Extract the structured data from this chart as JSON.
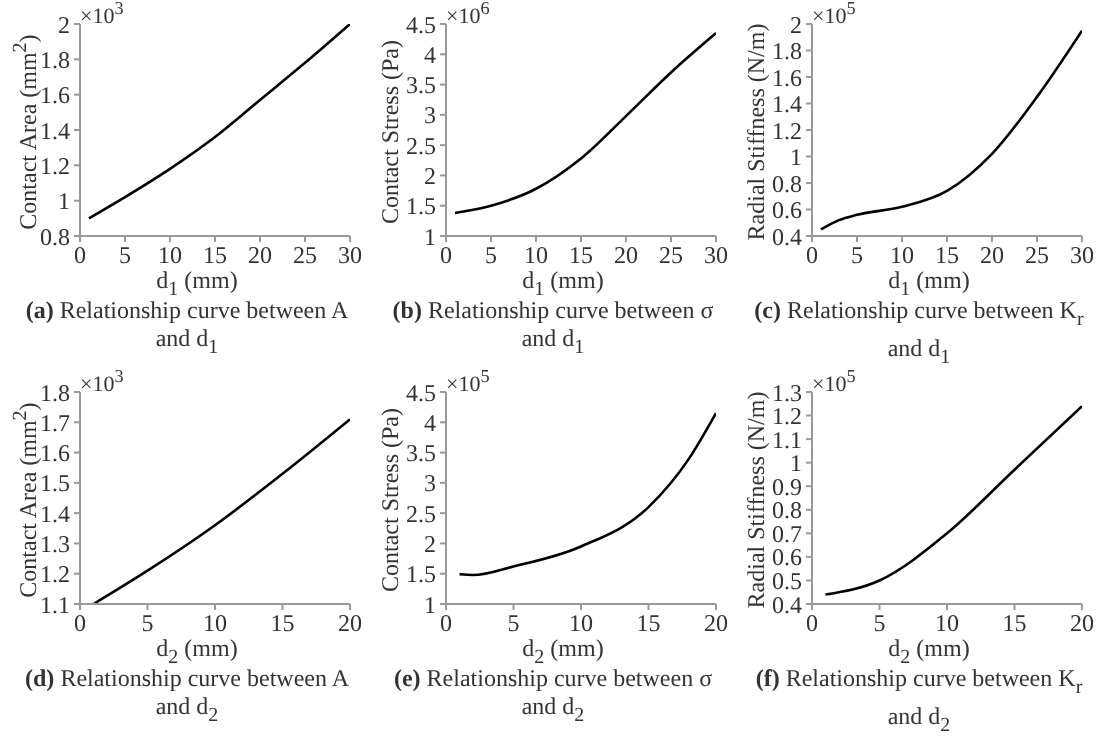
{
  "chart_data": [
    {
      "type": "line",
      "title": "(a) Relationship curve between A and d$_{1}$",
      "xlabel": "d$_{1}$ (mm)",
      "ylabel": "Contact Area (mm$^{2}$)",
      "annotations": [
        "×10$^{3}$"
      ],
      "x": [
        1,
        5,
        10,
        15,
        20,
        25,
        30
      ],
      "series": [
        {
          "color": "#000000",
          "values": [
            0.9,
            1.02,
            1.18,
            1.36,
            1.57,
            1.78,
            2.0
          ]
        }
      ],
      "xlim": [
        0,
        30
      ],
      "xticks": [
        0,
        5,
        10,
        15,
        20,
        25,
        30
      ],
      "ylim": [
        0.8,
        2
      ],
      "yticks": [
        0.8,
        1,
        1.2,
        1.4,
        1.6,
        1.8,
        2
      ],
      "grid": false,
      "legend": false,
      "marker": "none",
      "line_style": "solid"
    },
    {
      "type": "line",
      "title": "(b) Relationship curve between σ and d$_{1}$",
      "xlabel": "d$_{1}$ (mm)",
      "ylabel": "Contact Stress (Pa)",
      "annotations": [
        "×10$^{6}$"
      ],
      "x": [
        1,
        5,
        10,
        15,
        20,
        25,
        30
      ],
      "series": [
        {
          "color": "#000000",
          "values": [
            1.38,
            1.5,
            1.78,
            2.28,
            2.98,
            3.7,
            4.35
          ]
        }
      ],
      "xlim": [
        0,
        30
      ],
      "xticks": [
        0,
        5,
        10,
        15,
        20,
        25,
        30
      ],
      "ylim": [
        1,
        4.5
      ],
      "yticks": [
        1,
        1.5,
        2,
        2.5,
        3,
        3.5,
        4,
        4.5
      ],
      "grid": false,
      "legend": false,
      "marker": "none",
      "line_style": "solid"
    },
    {
      "type": "line",
      "title": "(c) Relationship curve between K$_{r}$ and d$_{1}$",
      "xlabel": "d$_{1}$ (mm)",
      "ylabel": "Radial Stiffness (N/m)",
      "annotations": [
        "×10$^{5}$"
      ],
      "x": [
        1,
        3,
        5,
        10,
        15,
        20,
        25,
        30
      ],
      "series": [
        {
          "color": "#000000",
          "values": [
            0.45,
            0.52,
            0.56,
            0.62,
            0.74,
            1.02,
            1.45,
            1.95
          ]
        }
      ],
      "xlim": [
        0,
        30
      ],
      "xticks": [
        0,
        5,
        10,
        15,
        20,
        25,
        30
      ],
      "ylim": [
        0.4,
        2
      ],
      "yticks": [
        0.4,
        0.6,
        0.8,
        1,
        1.2,
        1.4,
        1.6,
        1.8,
        2
      ],
      "grid": false,
      "legend": false,
      "marker": "none",
      "line_style": "solid"
    },
    {
      "type": "line",
      "title": "(d) Relationship curve between A and d$_{2}$",
      "xlabel": "d$_{2}$ (mm)",
      "ylabel": "Contact Area (mm$^{2}$)",
      "annotations": [
        "×10$^{3}$"
      ],
      "x": [
        1,
        5,
        10,
        15,
        20
      ],
      "series": [
        {
          "color": "#000000",
          "values": [
            1.1,
            1.21,
            1.36,
            1.53,
            1.71
          ]
        }
      ],
      "xlim": [
        0,
        20
      ],
      "xticks": [
        0,
        5,
        10,
        15,
        20
      ],
      "ylim": [
        1.1,
        1.8
      ],
      "yticks": [
        1.1,
        1.2,
        1.3,
        1.4,
        1.5,
        1.6,
        1.7,
        1.8
      ],
      "grid": false,
      "legend": false,
      "marker": "none",
      "line_style": "solid"
    },
    {
      "type": "line",
      "title": "(e) Relationship curve between σ and d$_{2}$",
      "xlabel": "d$_{2}$ (mm)",
      "ylabel": "Contact Stress (Pa)",
      "annotations": [
        "×10$^{5}$"
      ],
      "x": [
        1,
        2,
        5,
        10,
        15,
        18,
        20
      ],
      "series": [
        {
          "color": "#000000",
          "values": [
            1.49,
            1.48,
            1.62,
            1.95,
            2.6,
            3.4,
            4.15
          ]
        }
      ],
      "xlim": [
        0,
        20
      ],
      "xticks": [
        0,
        5,
        10,
        15,
        20
      ],
      "ylim": [
        1,
        4.5
      ],
      "yticks": [
        1,
        1.5,
        2,
        2.5,
        3,
        3.5,
        4,
        4.5
      ],
      "grid": false,
      "legend": false,
      "marker": "none",
      "line_style": "solid"
    },
    {
      "type": "line",
      "title": "(f) Relationship curve between K$_{r}$ and d$_{2}$",
      "xlabel": "d$_{2}$ (mm)",
      "ylabel": "Radial Stiffness (N/m)",
      "annotations": [
        "×10$^{5}$"
      ],
      "x": [
        1,
        5,
        10,
        15,
        20
      ],
      "series": [
        {
          "color": "#000000",
          "values": [
            0.44,
            0.5,
            0.7,
            0.97,
            1.24
          ]
        }
      ],
      "xlim": [
        0,
        20
      ],
      "xticks": [
        0,
        5,
        10,
        15,
        20
      ],
      "ylim": [
        0.4,
        1.3
      ],
      "yticks": [
        0.4,
        0.5,
        0.6,
        0.7,
        0.8,
        0.9,
        1,
        1.1,
        1.2,
        1.3
      ],
      "grid": false,
      "legend": false,
      "marker": "none",
      "line_style": "solid"
    }
  ]
}
